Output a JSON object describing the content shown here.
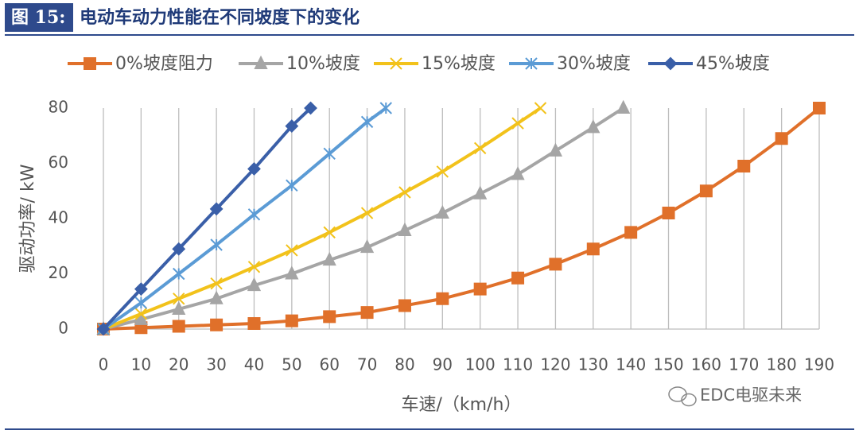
{
  "chart_data": {
    "type": "line",
    "figure_label": "图 15:",
    "title": "电动车动力性能在不同坡度下的变化",
    "x_label": "车速/（km/h）",
    "y_label": "驱动功率/ kW",
    "watermark": "EDC电驱未来",
    "xlim": [
      0,
      190
    ],
    "xticks": [
      0,
      10,
      20,
      30,
      40,
      50,
      60,
      70,
      80,
      90,
      100,
      110,
      120,
      130,
      140,
      150,
      160,
      170,
      180,
      190
    ],
    "ylim": [
      0,
      80
    ],
    "yticks": [
      0,
      20,
      40,
      60,
      80
    ],
    "grid": "x",
    "legend": "top",
    "series": [
      {
        "name": "0%坡度阻力",
        "color": "#e0702a",
        "marker": "square",
        "x": [
          0,
          10,
          20,
          30,
          40,
          50,
          60,
          70,
          80,
          90,
          100,
          110,
          120,
          130,
          140,
          150,
          160,
          170,
          180,
          190
        ],
        "values": [
          0,
          0.5,
          1,
          1.5,
          2,
          3,
          4.5,
          6,
          8.5,
          11,
          14.5,
          18.5,
          23.5,
          29,
          35,
          42,
          50,
          59,
          69,
          80
        ]
      },
      {
        "name": "10%坡度",
        "color": "#a5a5a5",
        "marker": "triangle",
        "x": [
          0,
          10,
          20,
          30,
          40,
          50,
          60,
          70,
          80,
          90,
          100,
          110,
          120,
          130,
          138
        ],
        "values": [
          0,
          3.5,
          7.2,
          11,
          15.8,
          20,
          25,
          29.6,
          35.7,
          42,
          49,
          56,
          64.5,
          73,
          80
        ]
      },
      {
        "name": "15%坡度",
        "color": "#f2c21b",
        "marker": "x",
        "x": [
          0,
          10,
          20,
          30,
          40,
          50,
          60,
          70,
          80,
          90,
          100,
          110,
          116
        ],
        "values": [
          0,
          5.5,
          11,
          16.5,
          22.5,
          28.5,
          35,
          42,
          49.5,
          57,
          65.5,
          74.5,
          80
        ]
      },
      {
        "name": "30%坡度",
        "color": "#5b9bd5",
        "marker": "asterisk",
        "x": [
          0,
          10,
          20,
          30,
          40,
          50,
          60,
          70,
          75
        ],
        "values": [
          0,
          9.5,
          20,
          30.5,
          41.5,
          52,
          63.5,
          75,
          80
        ]
      },
      {
        "name": "45%坡度",
        "color": "#3a5fa8",
        "marker": "diamond",
        "x": [
          0,
          10,
          20,
          30,
          40,
          50,
          55
        ],
        "values": [
          0,
          14.5,
          29,
          43.5,
          58,
          73.5,
          80
        ]
      }
    ]
  }
}
